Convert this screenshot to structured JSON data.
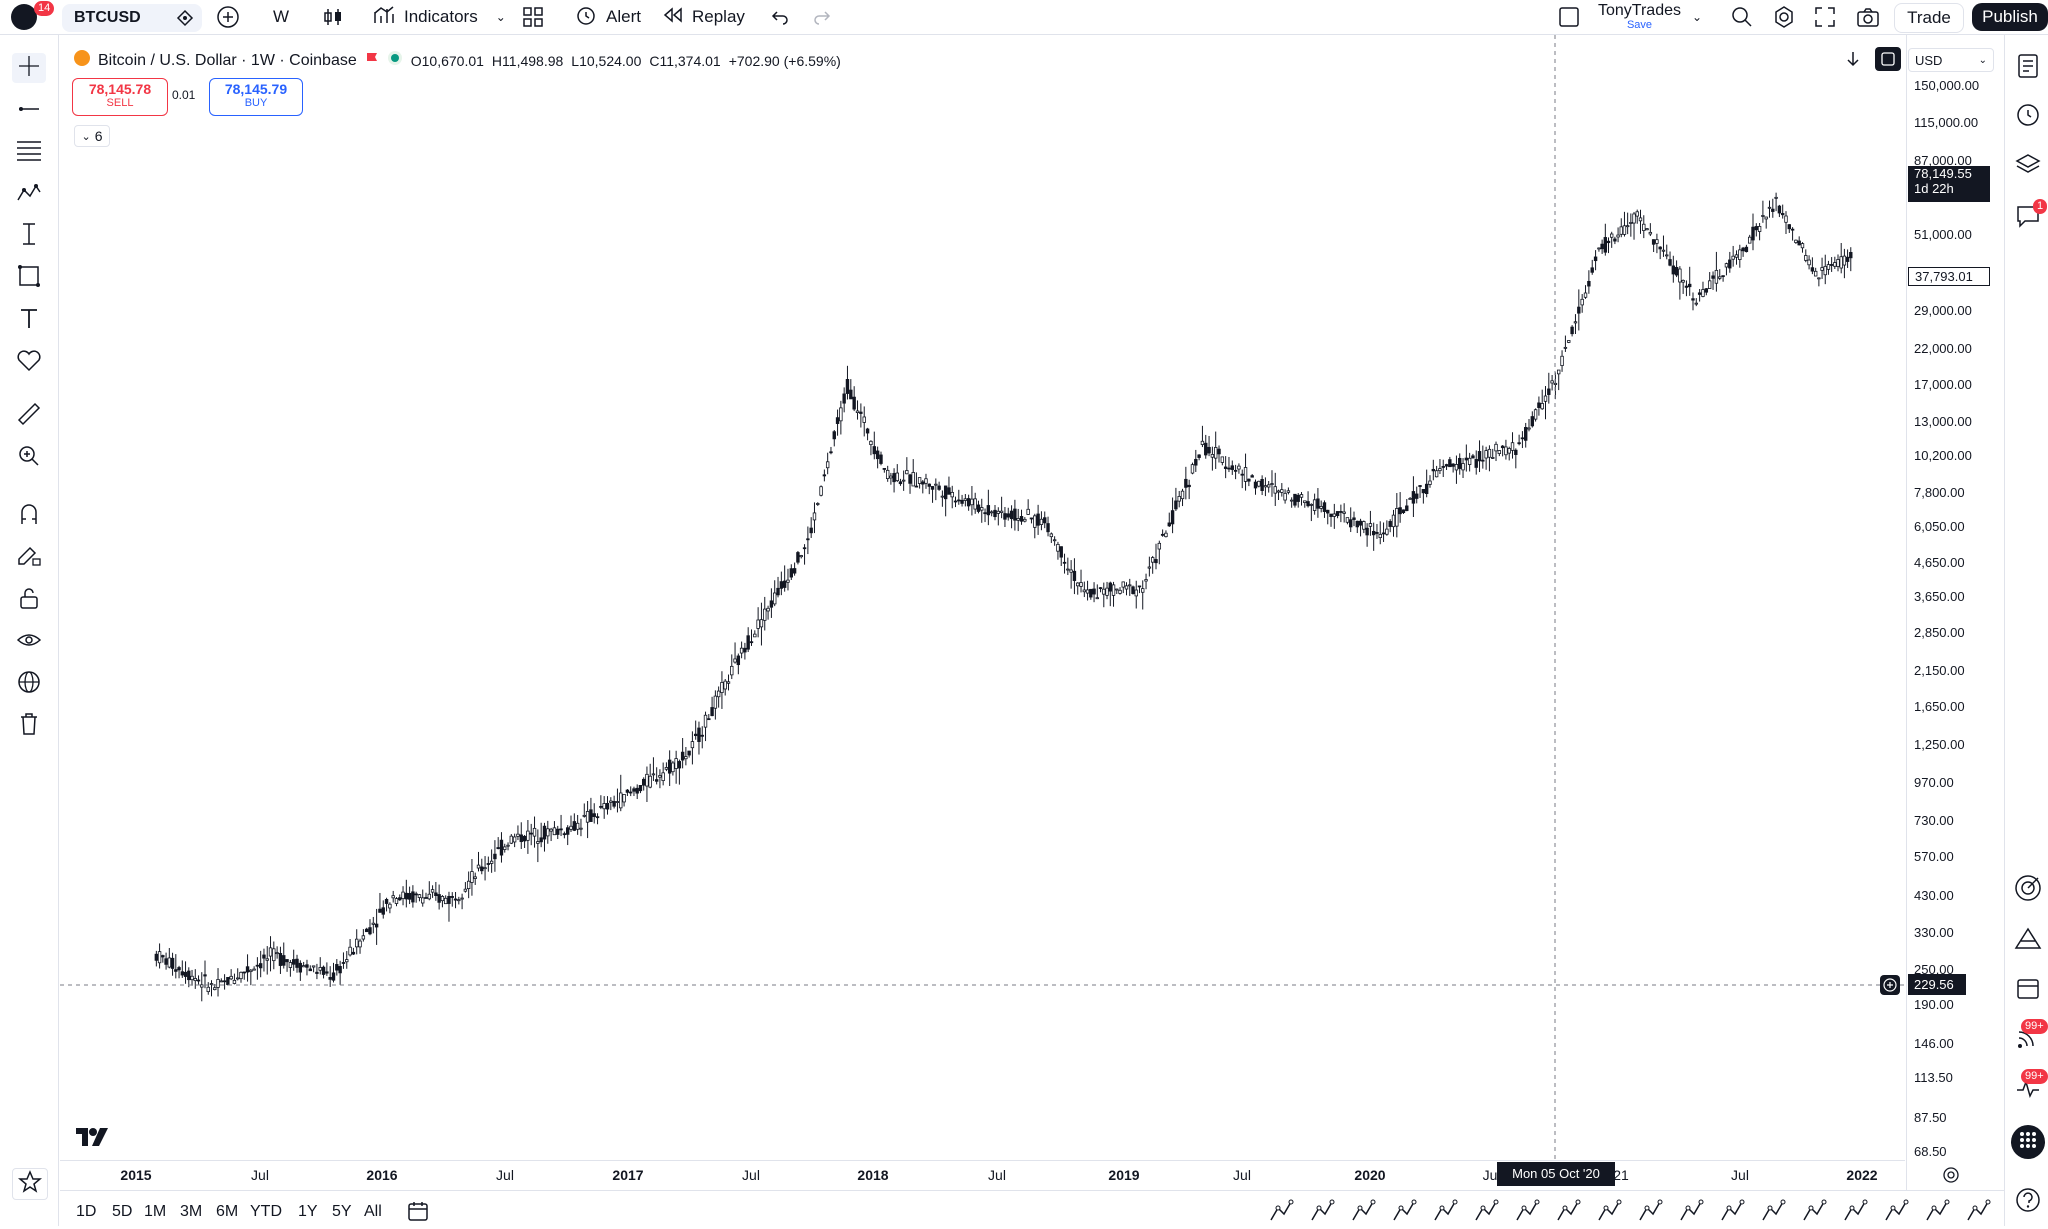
{
  "header": {
    "notifications": "14",
    "symbol": "BTCUSD",
    "interval": "W",
    "indicators_label": "Indicators",
    "alert_label": "Alert",
    "replay_label": "Replay",
    "layout_name": "TonyTrades",
    "save_label": "Save",
    "trade_label": "Trade",
    "publish_label": "Publish"
  },
  "legend": {
    "title": "Bitcoin / U.S. Dollar · 1W · Coinbase",
    "open": "O10,670.01",
    "high": "H11,498.98",
    "low": "L10,524.00",
    "close": "C11,374.01",
    "change": "+702.90 (+6.59%)",
    "sell_price": "78,145.78",
    "sell_label": "SELL",
    "spread": "0.01",
    "buy_price": "78,145.79",
    "buy_label": "BUY",
    "indicators_count": "6"
  },
  "price_axis": {
    "currency": "USD",
    "current_price": "78,149.55",
    "countdown": "1d 22h",
    "marker_price": "37,793.01",
    "crosshair_price": "229.56",
    "ticks": [
      "150,000.00",
      "115,000.00",
      "87,000.00",
      "51,000.00",
      "29,000.00",
      "22,000.00",
      "17,000.00",
      "13,000.00",
      "10,200.00",
      "7,800.00",
      "6,050.00",
      "4,650.00",
      "3,650.00",
      "2,850.00",
      "2,150.00",
      "1,650.00",
      "1,250.00",
      "970.00",
      "730.00",
      "570.00",
      "430.00",
      "330.00",
      "250.00",
      "190.00",
      "146.00",
      "113.50",
      "87.50",
      "68.50"
    ]
  },
  "time_axis": {
    "labels": [
      "2015",
      "Jul",
      "2016",
      "Jul",
      "2017",
      "Jul",
      "2018",
      "Jul",
      "2019",
      "Jul",
      "2020",
      "Ju",
      "21",
      "Jul",
      "2022"
    ],
    "crosshair_date": "Mon 05 Oct '20"
  },
  "ranges": [
    "1D",
    "5D",
    "1M",
    "3M",
    "6M",
    "YTD",
    "1Y",
    "5Y",
    "All"
  ],
  "right_badges": {
    "alerts": "1",
    "news1": "99+",
    "news2": "99+"
  },
  "chart_data": {
    "type": "line",
    "title": "Bitcoin / U.S. Dollar · 1W · Coinbase",
    "xlabel": "",
    "ylabel": "",
    "log_scale": true,
    "x": [
      "2015-01",
      "2015-04",
      "2015-07",
      "2015-10",
      "2016-01",
      "2016-04",
      "2016-07",
      "2016-10",
      "2017-01",
      "2017-04",
      "2017-07",
      "2017-10",
      "2017-12",
      "2018-02",
      "2018-04",
      "2018-07",
      "2018-10",
      "2018-12",
      "2019-03",
      "2019-06",
      "2019-09",
      "2019-12",
      "2020-03",
      "2020-06",
      "2020-10",
      "2020-12",
      "2021-02",
      "2021-04",
      "2021-07",
      "2021-09",
      "2021-11",
      "2022-01",
      "2022-03"
    ],
    "series": [
      {
        "values": [
          280,
          220,
          280,
          240,
          430,
          420,
          650,
          700,
          900,
          1200,
          2700,
          5500,
          17000,
          9000,
          8500,
          7000,
          6400,
          3800,
          4000,
          11000,
          8300,
          7200,
          5800,
          9300,
          11000,
          19000,
          45000,
          58000,
          32000,
          43000,
          64000,
          38000,
          44000
        ]
      }
    ],
    "ylim": [
      68.5,
      150000
    ],
    "grid": false
  }
}
